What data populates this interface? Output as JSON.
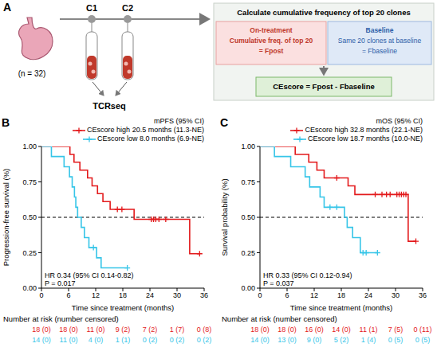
{
  "panel_A": {
    "letter": "A",
    "n_label": "(n = 32)",
    "timepoints": [
      "C1",
      "C2"
    ],
    "assay": "TCRseq",
    "box": {
      "title": "Calculate cumulative frequency of top 20 clones",
      "on_treatment": {
        "heading": "On-treatment",
        "lines": [
          "Cumulative freq. of top 20",
          "= Fpost"
        ]
      },
      "baseline": {
        "heading": "Baseline",
        "lines": [
          "Same 20 clones at baseline",
          "= Fbaseline"
        ]
      },
      "result": "CEscore = Fpost - Fbaseline"
    }
  },
  "chart_data": [
    {
      "type": "line",
      "letter": "B",
      "line_style": "step",
      "marker": "+",
      "legend": "top-right",
      "legend_title": "mPFS (95% CI)",
      "x_label": "Time since treatment (months)",
      "y_label": "Progression-free survival (%)",
      "xlim": [
        0,
        36
      ],
      "xticks": [
        0,
        6,
        12,
        18,
        24,
        30,
        36
      ],
      "ylim": [
        0,
        1
      ],
      "yticks": [
        {
          "value": 0,
          "label": "0.00"
        },
        {
          "value": 0.25,
          "label": "0.25"
        },
        {
          "value": 0.5,
          "label": "0.50"
        },
        {
          "value": 0.75,
          "label": "0.75"
        },
        {
          "value": 1,
          "label": "1.00"
        }
      ],
      "hline": 0.5,
      "annotations": [
        "HR 0.34 (95% CI 0.14-0.82)",
        "P = 0.017"
      ],
      "series": [
        {
          "name": "CEscore high",
          "note": "20.5 months (11.3-NE)",
          "color": "#e31a1c",
          "x": [
            0,
            6.3,
            7.2,
            8.5,
            10.2,
            11.2,
            12.4,
            13.6,
            15.2,
            20.5,
            32.8,
            35.0
          ],
          "values": [
            1,
            0.944,
            0.889,
            0.833,
            0.778,
            0.722,
            0.667,
            0.611,
            0.556,
            0.486,
            0.243,
            0.243
          ],
          "censored_x": [
            16.8,
            17.8,
            24.3,
            24.8,
            25.3,
            26.0,
            27.5,
            35.0
          ],
          "censored_values": [
            0.556,
            0.556,
            0.486,
            0.486,
            0.486,
            0.486,
            0.486,
            0.243
          ]
        },
        {
          "name": "CEscore low",
          "note": "8.0 months (6.9-NE)",
          "color": "#36c5e8",
          "x": [
            0,
            2.2,
            5.0,
            6.2,
            6.8,
            7.3,
            7.6,
            8.0,
            8.8,
            9.5,
            10.5,
            12.2,
            13.2,
            19.0
          ],
          "values": [
            1,
            0.929,
            0.857,
            0.786,
            0.714,
            0.643,
            0.571,
            0.5,
            0.429,
            0.357,
            0.286,
            0.214,
            0.143,
            0.143
          ],
          "censored_x": [
            11.5,
            19.0
          ],
          "censored_values": [
            0.286,
            0.143
          ]
        }
      ],
      "risk_table": {
        "title": "Number at risk (number censored)",
        "times": [
          0,
          6,
          12,
          18,
          24,
          30,
          36
        ],
        "rows": [
          {
            "color": "#e31a1c",
            "labels": [
              "18 (0)",
              "18 (0)",
              "11 (0)",
              "9 (2)",
              "7 (2)",
              "1 (7)",
              "0 (8)"
            ]
          },
          {
            "color": "#36c5e8",
            "labels": [
              "14 (0)",
              "11 (0)",
              "4 (0)",
              "1 (1)",
              "0 (2)",
              "0 (2)",
              "0 (2)"
            ]
          }
        ]
      }
    },
    {
      "type": "line",
      "letter": "C",
      "line_style": "step",
      "marker": "+",
      "legend": "top-right",
      "legend_title": "mOS (95% CI)",
      "x_label": "Time since treatment (months)",
      "y_label": "Survival probability (%)",
      "xlim": [
        0,
        36
      ],
      "xticks": [
        0,
        6,
        12,
        18,
        24,
        30,
        36
      ],
      "ylim": [
        0,
        1
      ],
      "yticks": [
        {
          "value": 0,
          "label": "0.00"
        },
        {
          "value": 0.25,
          "label": "0.25"
        },
        {
          "value": 0.5,
          "label": "0.50"
        },
        {
          "value": 0.75,
          "label": "0.75"
        },
        {
          "value": 1,
          "label": "1.00"
        }
      ],
      "hline": 0.5,
      "annotations": [
        "HR 0.33 (95% CI 0.12-0.94)",
        "P = 0.037"
      ],
      "series": [
        {
          "name": "CEscore high",
          "note": "32.8 months (22.1-NE)",
          "color": "#e31a1c",
          "x": [
            0,
            7.8,
            10.8,
            12.6,
            14.2,
            19.5,
            21.0,
            32.8,
            34.5
          ],
          "values": [
            1,
            0.944,
            0.889,
            0.833,
            0.778,
            0.722,
            0.661,
            0.331,
            0.331
          ],
          "censored_x": [
            17.0,
            25.5,
            27.0,
            28.0,
            28.8,
            30.3,
            30.8,
            31.3,
            31.8,
            32.3,
            34.5
          ],
          "censored_values": [
            0.778,
            0.661,
            0.661,
            0.661,
            0.661,
            0.661,
            0.661,
            0.661,
            0.661,
            0.661,
            0.331
          ]
        },
        {
          "name": "CEscore low",
          "note": "18.7 months (10.0-NE)",
          "color": "#36c5e8",
          "x": [
            0,
            3.2,
            6.8,
            10.0,
            11.0,
            13.3,
            14.2,
            18.7,
            19.3,
            20.5,
            22.2,
            26.0
          ],
          "values": [
            1,
            0.929,
            0.857,
            0.786,
            0.714,
            0.643,
            0.571,
            0.5,
            0.429,
            0.357,
            0.25,
            0.25
          ],
          "censored_x": [
            15.5,
            17.0,
            22.8,
            23.5,
            26.0
          ],
          "censored_values": [
            0.571,
            0.571,
            0.25,
            0.25,
            0.25
          ]
        }
      ],
      "risk_table": {
        "title": "Number at risk (number censored)",
        "times": [
          0,
          6,
          12,
          18,
          24,
          30,
          36
        ],
        "rows": [
          {
            "color": "#e31a1c",
            "labels": [
              "18 (0)",
              "18 (0)",
              "16 (0)",
              "14 (0)",
              "11 (1)",
              "7 (5)",
              "0 (11)"
            ]
          },
          {
            "color": "#36c5e8",
            "labels": [
              "14 (0)",
              "13 (0)",
              "9 (0)",
              "5 (2)",
              "1 (4)",
              "0 (5)",
              "0 (5)"
            ]
          }
        ]
      }
    }
  ]
}
